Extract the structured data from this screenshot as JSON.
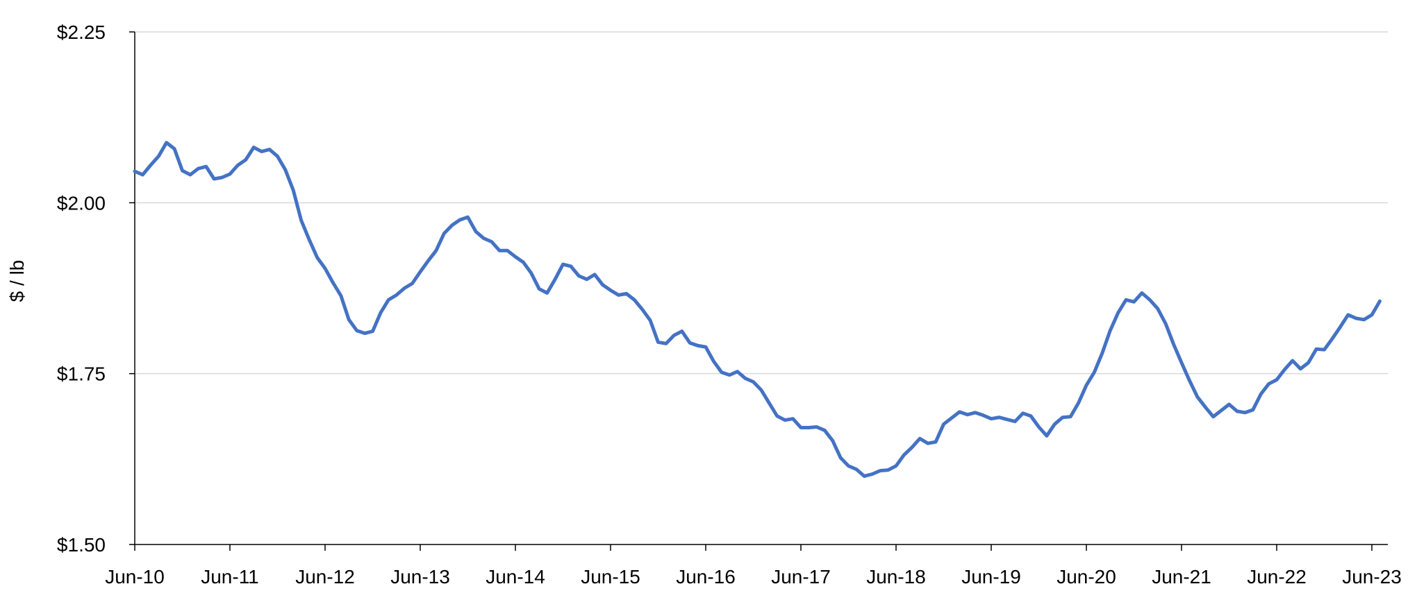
{
  "chart_data": {
    "type": "line",
    "title": "",
    "xlabel": "",
    "ylabel": "$ / lb",
    "ylim": [
      1.5,
      2.25
    ],
    "yticks": [
      {
        "value": 1.5,
        "label": "$1.50"
      },
      {
        "value": 1.75,
        "label": "$1.75"
      },
      {
        "value": 2.0,
        "label": "$2.00"
      },
      {
        "value": 2.25,
        "label": "$2.25"
      }
    ],
    "xticks": [
      "Jun-10",
      "Jun-11",
      "Jun-12",
      "Jun-13",
      "Jun-14",
      "Jun-15",
      "Jun-16",
      "Jun-17",
      "Jun-18",
      "Jun-19",
      "Jun-20",
      "Jun-21",
      "Jun-22",
      "Jun-23"
    ],
    "grid": "horizontal",
    "legend": "none",
    "line_color": "#4472C4",
    "x_start": "Jun-10",
    "x_end": "Aug-23",
    "series": [
      {
        "values": [
          2.046,
          2.041,
          2.055,
          2.068,
          2.088,
          2.079,
          2.047,
          2.041,
          2.05,
          2.053,
          2.035,
          2.037,
          2.042,
          2.055,
          2.063,
          2.081,
          2.075,
          2.078,
          2.068,
          2.048,
          2.018,
          1.974,
          1.946,
          1.92,
          1.904,
          1.883,
          1.864,
          1.829,
          1.813,
          1.809,
          1.812,
          1.839,
          1.858,
          1.865,
          1.875,
          1.882,
          1.899,
          1.915,
          1.93,
          1.955,
          1.967,
          1.975,
          1.979,
          1.958,
          1.948,
          1.943,
          1.93,
          1.93,
          1.921,
          1.913,
          1.897,
          1.874,
          1.868,
          1.888,
          1.91,
          1.907,
          1.893,
          1.888,
          1.895,
          1.88,
          1.872,
          1.865,
          1.867,
          1.858,
          1.844,
          1.828,
          1.796,
          1.794,
          1.806,
          1.812,
          1.795,
          1.791,
          1.789,
          1.768,
          1.752,
          1.748,
          1.753,
          1.743,
          1.738,
          1.726,
          1.707,
          1.688,
          1.682,
          1.684,
          1.671,
          1.671,
          1.672,
          1.667,
          1.652,
          1.627,
          1.615,
          1.61,
          1.6,
          1.603,
          1.608,
          1.609,
          1.615,
          1.631,
          1.642,
          1.655,
          1.648,
          1.65,
          1.676,
          1.685,
          1.694,
          1.69,
          1.693,
          1.689,
          1.684,
          1.686,
          1.683,
          1.68,
          1.692,
          1.688,
          1.672,
          1.659,
          1.676,
          1.686,
          1.687,
          1.707,
          1.733,
          1.752,
          1.78,
          1.813,
          1.839,
          1.858,
          1.855,
          1.868,
          1.858,
          1.845,
          1.823,
          1.793,
          1.766,
          1.74,
          1.716,
          1.701,
          1.687,
          1.696,
          1.705,
          1.695,
          1.693,
          1.697,
          1.72,
          1.735,
          1.741,
          1.756,
          1.769,
          1.757,
          1.766,
          1.786,
          1.785,
          1.801,
          1.818,
          1.836,
          1.831,
          1.829,
          1.836,
          1.856
        ]
      }
    ]
  }
}
